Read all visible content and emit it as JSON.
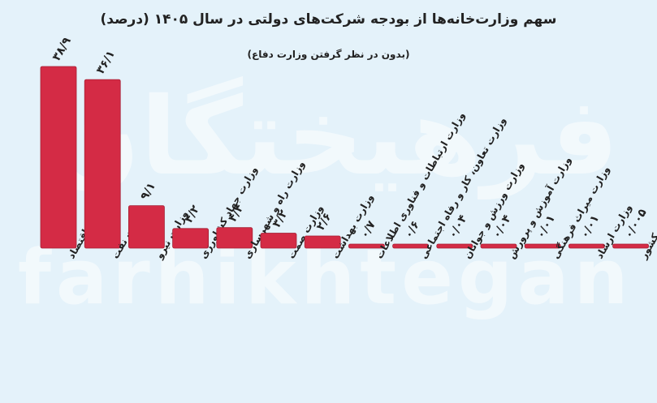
{
  "header": {
    "title": "سهم وزارت‌خانه‌ها از بودجه شرکت‌های دولتی در سال ۱۴۰۵ (درصد)",
    "subtitle": "(بدون در نظر گرفتن وزارت دفاع)"
  },
  "watermark": {
    "persian": "فرهیختگان",
    "latin": "farhikhtegan"
  },
  "colors": {
    "background": "#e4f2fa",
    "bar": "#d42b45",
    "bar_shadow": "#a51e33",
    "text": "#222222"
  },
  "chart_data": {
    "type": "bar",
    "categories": [
      "وزارت اقتصاد",
      "وزارت نفت",
      "وزارت نیرو",
      "وزارت جهاد کشاورزی",
      "وزارت راه و شهرسازی",
      "وزارت صمت",
      "وزارت بهداشت",
      "وزارت ارتباطات و فناوری اطلاعات",
      "وزارت تعاون، کار و رفاه اجتماعی",
      "وزارت ورزش و جوانان",
      "وزارت آموزش و پرورش",
      "وزارت میراث فرهنگی",
      "وزارت ارشاد",
      "وزارت کشور"
    ],
    "values": [
      38.9,
      36.1,
      9.1,
      4.2,
      4.4,
      3.2,
      2.6,
      0.7,
      0.6,
      0.04,
      0.04,
      0.01,
      0.01,
      0.005
    ],
    "value_labels": [
      "۳۸/۹",
      "۳۶/۱",
      "۹/۱",
      "۴/۲",
      "۴/۴",
      "۳/۲",
      "۲/۶",
      "۰/۷",
      "۰/۶",
      "۰/۰۴",
      "۰/۰۴",
      "۰/۰۱",
      "۰/۰۱",
      "۰/۰۰۵"
    ],
    "ylim": [
      0,
      40
    ],
    "xlabel": "",
    "ylabel": ""
  }
}
